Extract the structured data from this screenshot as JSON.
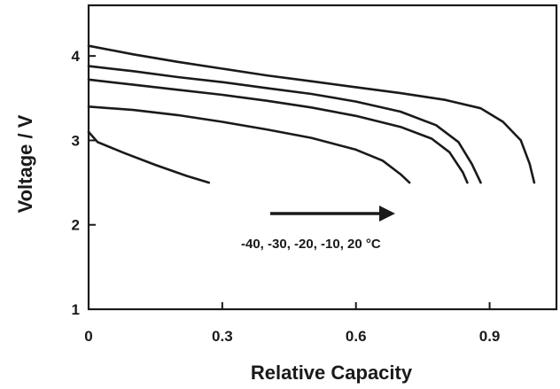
{
  "chart_data": {
    "type": "line",
    "xlabel": "Relative Capacity",
    "ylabel": "Voltage / V",
    "xlim": [
      0,
      1.05
    ],
    "ylim": [
      1,
      4.6
    ],
    "xticks": [
      "0",
      "0.3",
      "0.6",
      "0.9"
    ],
    "xtick_values": [
      0,
      0.3,
      0.6,
      0.9
    ],
    "yticks": [
      "1",
      "2",
      "3",
      "4"
    ],
    "ytick_values": [
      1,
      2,
      3,
      4
    ],
    "grid": false,
    "annotation": "-40, -30, -20, -10, 20 °C",
    "series": [
      {
        "x": [
          0,
          0.02,
          0.08,
          0.15,
          0.22,
          0.27
        ],
        "y": [
          3.1,
          2.98,
          2.85,
          2.71,
          2.58,
          2.5
        ]
      },
      {
        "x": [
          0,
          0.1,
          0.2,
          0.3,
          0.4,
          0.5,
          0.6,
          0.66,
          0.7,
          0.72
        ],
        "y": [
          3.4,
          3.36,
          3.3,
          3.22,
          3.13,
          3.03,
          2.89,
          2.76,
          2.6,
          2.5
        ]
      },
      {
        "x": [
          0,
          0.1,
          0.2,
          0.3,
          0.4,
          0.5,
          0.6,
          0.7,
          0.77,
          0.81,
          0.84,
          0.85
        ],
        "y": [
          3.72,
          3.66,
          3.6,
          3.54,
          3.47,
          3.39,
          3.29,
          3.16,
          3.02,
          2.86,
          2.62,
          2.5
        ]
      },
      {
        "x": [
          0,
          0.1,
          0.2,
          0.3,
          0.4,
          0.5,
          0.6,
          0.7,
          0.78,
          0.83,
          0.86,
          0.88
        ],
        "y": [
          3.88,
          3.82,
          3.75,
          3.69,
          3.62,
          3.55,
          3.46,
          3.34,
          3.18,
          2.98,
          2.72,
          2.5
        ]
      },
      {
        "x": [
          0,
          0.1,
          0.2,
          0.3,
          0.4,
          0.5,
          0.6,
          0.7,
          0.8,
          0.88,
          0.93,
          0.97,
          0.99,
          1.0
        ],
        "y": [
          4.12,
          4.02,
          3.93,
          3.85,
          3.77,
          3.7,
          3.63,
          3.56,
          3.48,
          3.38,
          3.22,
          3.0,
          2.72,
          2.5
        ]
      }
    ]
  }
}
